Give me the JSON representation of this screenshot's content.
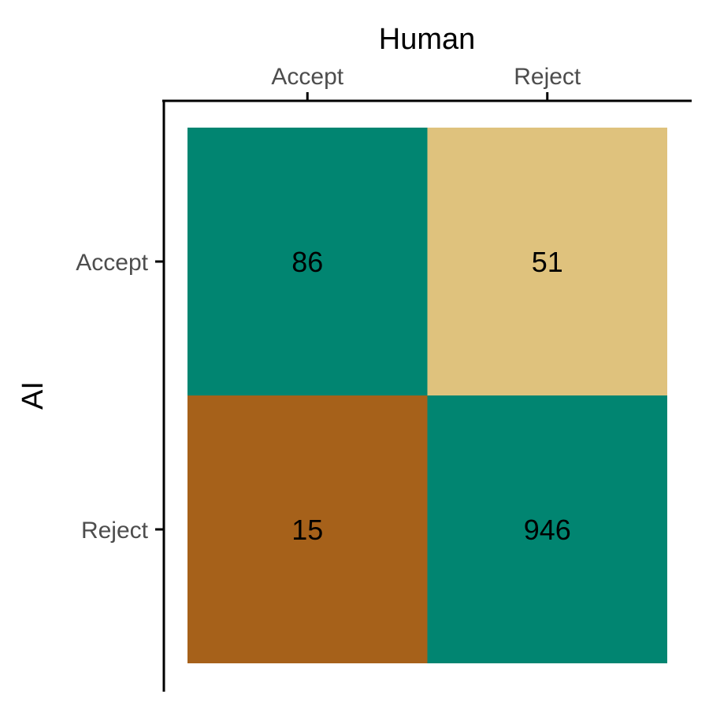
{
  "chart_data": {
    "type": "heatmap",
    "xlabel": "Human",
    "ylabel": "AI",
    "x_categories": [
      "Accept",
      "Reject"
    ],
    "y_categories": [
      "Accept",
      "Reject"
    ],
    "x_axis_position": "top",
    "grid": false,
    "legend": "none",
    "cells": [
      {
        "x": "Accept",
        "y": "Accept",
        "value": 86,
        "color": "#018571"
      },
      {
        "x": "Reject",
        "y": "Accept",
        "value": 51,
        "color": "#dfc27d"
      },
      {
        "x": "Accept",
        "y": "Reject",
        "value": 15,
        "color": "#a6611a"
      },
      {
        "x": "Reject",
        "y": "Reject",
        "value": 946,
        "color": "#018571"
      }
    ]
  }
}
